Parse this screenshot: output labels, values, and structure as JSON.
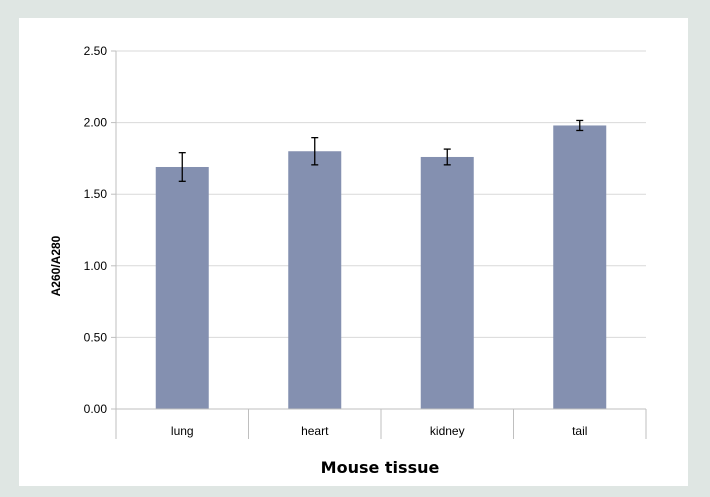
{
  "chart_data": {
    "type": "bar",
    "title": "",
    "xlabel": "Mouse tissue",
    "ylabel": "A260/A280",
    "categories": [
      "lung",
      "heart",
      "kidney",
      "tail"
    ],
    "values": [
      1.69,
      1.8,
      1.76,
      1.98
    ],
    "error": [
      0.1,
      0.095,
      0.055,
      0.035
    ],
    "ylim": [
      0,
      2.5
    ],
    "yticks": [
      "0.00",
      "0.50",
      "1.00",
      "1.50",
      "2.00",
      "2.50"
    ],
    "ytick_values": [
      0,
      0.5,
      1.0,
      1.5,
      2.0,
      2.5
    ],
    "grid": true,
    "legend": "none",
    "bar_color": "#8490b0"
  }
}
